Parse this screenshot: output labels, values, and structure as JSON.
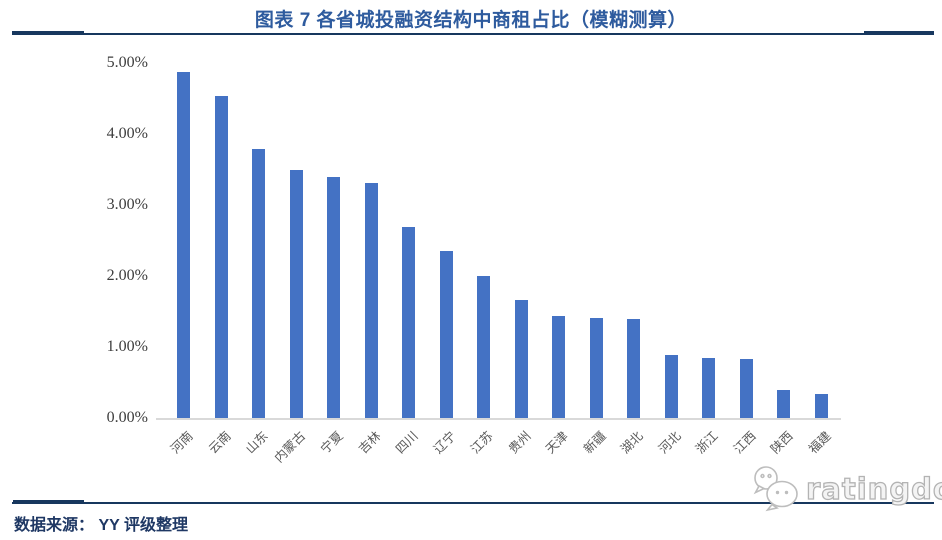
{
  "header": {
    "title": "图表 7 各省城投融资结构中商租占比（模糊测算）"
  },
  "chart_data": {
    "type": "bar",
    "title": "图表 7 各省城投融资结构中商租占比（模糊测算）",
    "categories": [
      "河南",
      "云南",
      "山东",
      "内蒙古",
      "宁夏",
      "吉林",
      "四川",
      "辽宁",
      "江苏",
      "贵州",
      "天津",
      "新疆",
      "湖北",
      "河北",
      "浙江",
      "江西",
      "陕西",
      "福建"
    ],
    "values": [
      4.88,
      4.54,
      3.79,
      3.49,
      3.39,
      3.31,
      2.69,
      2.35,
      2.0,
      1.66,
      1.44,
      1.41,
      1.4,
      0.89,
      0.84,
      0.83,
      0.39,
      0.34
    ],
    "unit": "%",
    "xlabel": "",
    "ylabel": "",
    "ylim": [
      0,
      5
    ],
    "ytick_labels": [
      "0.00%",
      "1.00%",
      "2.00%",
      "3.00%",
      "4.00%",
      "5.00%"
    ],
    "bar_color": "#4472c4",
    "grid": false,
    "legend": false
  },
  "footer": {
    "source": "数据来源： YY 评级整理",
    "logo_text": "ratingdog"
  },
  "colors": {
    "title_blue": "#2e5b9e",
    "footer_navy": "#1f3864",
    "rule_navy": "#17375e",
    "bar_blue": "#4472c4",
    "axis_gray": "#d9d9d9"
  }
}
